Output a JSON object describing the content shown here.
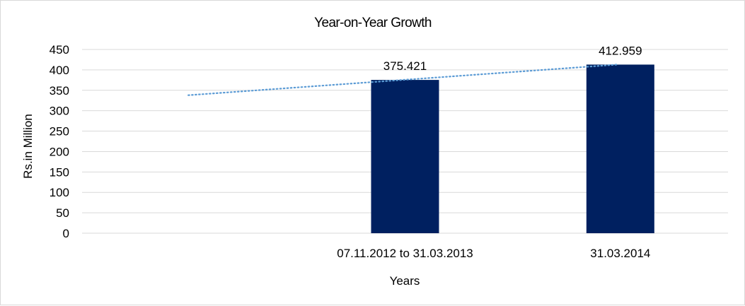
{
  "chart_data": {
    "type": "bar",
    "title": "Year-on-Year Growth",
    "xlabel": "Years",
    "ylabel": "Rs.in Million",
    "categories": [
      "",
      "07.11.2012 to 31.03.2013",
      "31.03.2014"
    ],
    "values": [
      null,
      375.421,
      412.959
    ],
    "data_labels": [
      "",
      "375.421",
      "412.959"
    ],
    "ylim": [
      0,
      450
    ],
    "yticks": [
      0,
      50,
      100,
      150,
      200,
      250,
      300,
      350,
      400,
      450
    ],
    "grid": true,
    "legend": "none",
    "bar_color": "#002060",
    "trendline": {
      "type": "linear",
      "style": "dotted",
      "color": "#5b9bd5",
      "start": 338,
      "end": 413
    }
  }
}
